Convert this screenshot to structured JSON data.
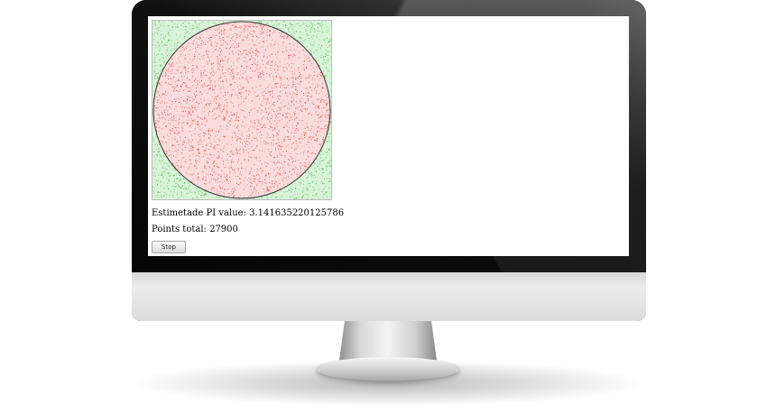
{
  "app": {
    "pi_text": "Estimetade PI value: 3.141635220125786",
    "points_text": "Points total: 27900",
    "stop_label": "Stop"
  },
  "simulation": {
    "points_total": 27900,
    "estimated_pi": 3.141635220125786,
    "inside_color": "#e03030",
    "outside_color": "#38b038",
    "background_inside": "#fadcdc",
    "background_outside": "#d8f3d8",
    "circle_stroke": "#333333"
  },
  "icons": {
    "device": "imac-monitor"
  }
}
